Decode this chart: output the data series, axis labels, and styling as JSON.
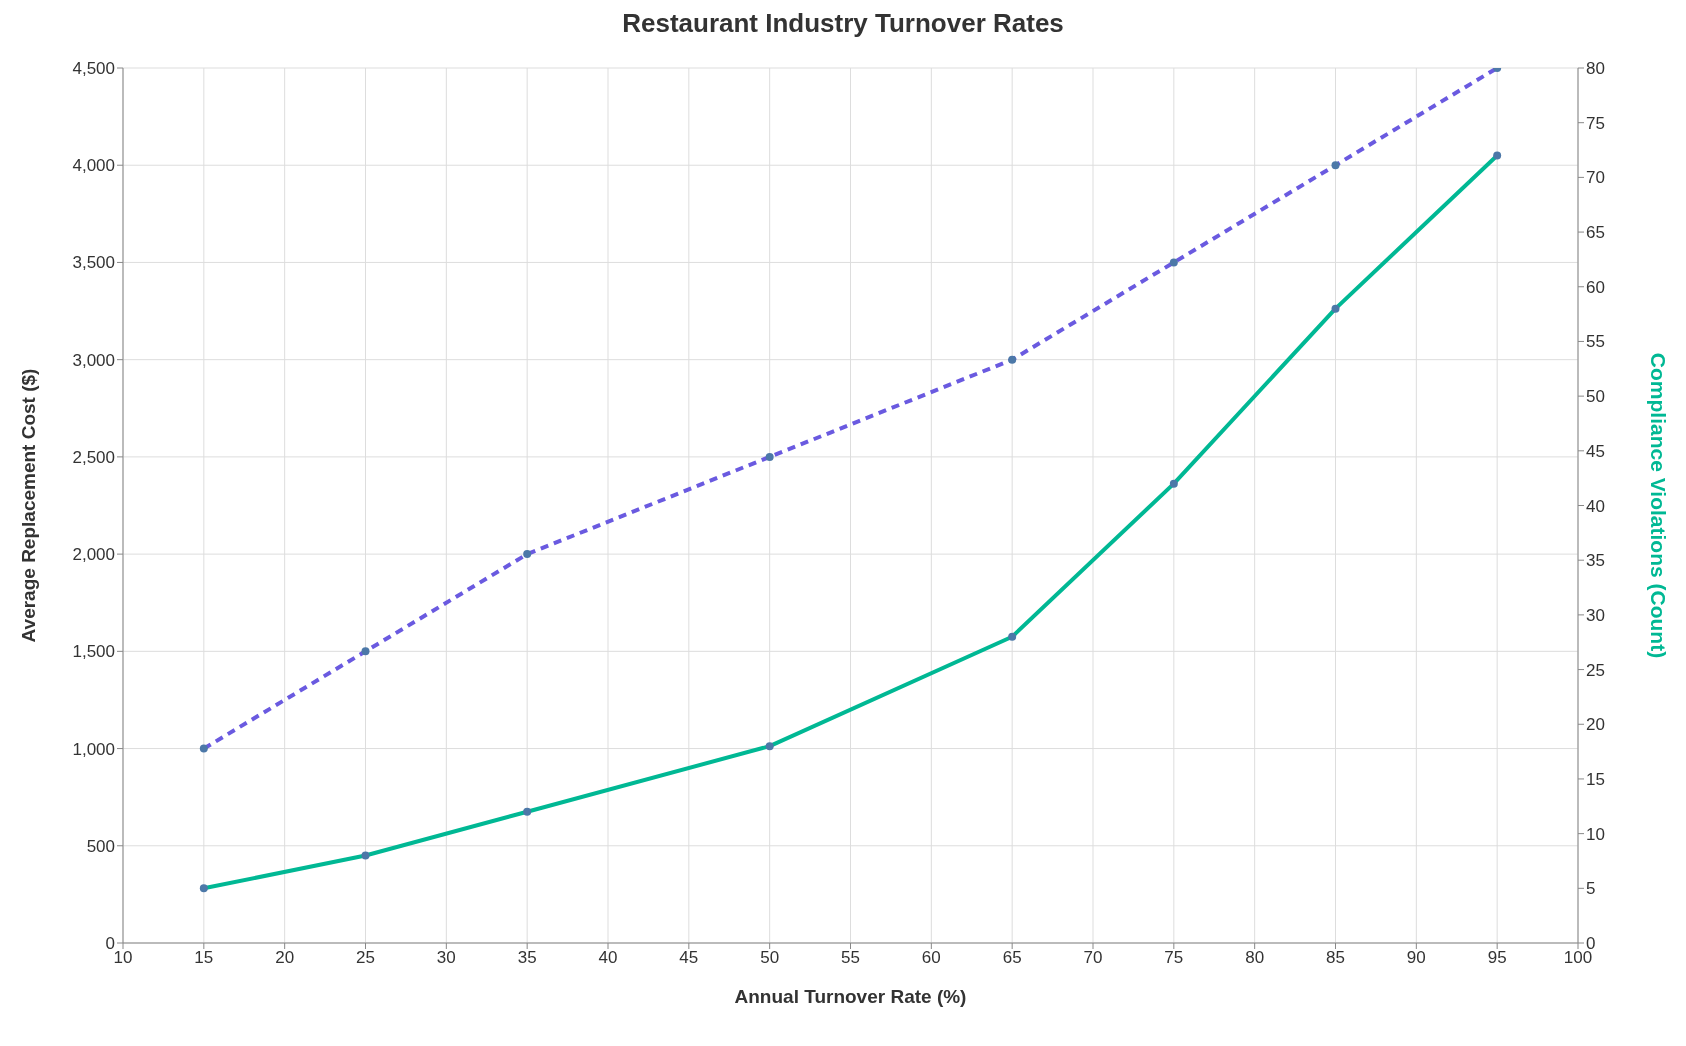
{
  "chart_data": {
    "type": "line",
    "title": "Restaurant Industry Turnover Rates",
    "xlabel": "Annual Turnover Rate (%)",
    "ylabel": "Average Replacement Cost ($)",
    "y2label": "Compliance Violations (Count)",
    "x": [
      15,
      25,
      35,
      50,
      65,
      75,
      85,
      95
    ],
    "series": [
      {
        "color": "#6a5ae0",
        "line_style": "dashed",
        "values": [
          1000,
          1500,
          2000,
          2500,
          3000,
          3500,
          4000,
          4500
        ]
      },
      {
        "color": "#00b894",
        "line_style": "solid",
        "axis": "y2",
        "values": [
          5,
          8,
          12,
          18,
          28,
          42,
          58,
          72
        ]
      }
    ],
    "xlim": [
      10,
      100
    ],
    "xticks": [
      10,
      15,
      20,
      25,
      30,
      35,
      40,
      45,
      50,
      55,
      60,
      65,
      70,
      75,
      80,
      85,
      90,
      95,
      100
    ],
    "ylim": [
      0,
      4500
    ],
    "yticks": [
      0,
      500,
      {
        "value": 1000,
        "label": "1,000"
      },
      {
        "value": 1500,
        "label": "1,500"
      },
      {
        "value": 2000,
        "label": "2,000"
      },
      {
        "value": 2500,
        "label": "2,500"
      },
      {
        "value": 3000,
        "label": "3,000"
      },
      {
        "value": 3500,
        "label": "3,500"
      },
      {
        "value": 4000,
        "label": "4,000"
      },
      {
        "value": 4500,
        "label": "4,500"
      }
    ],
    "y2lim": [
      0,
      80
    ],
    "y2ticks": [
      0,
      5,
      10,
      15,
      20,
      25,
      30,
      35,
      40,
      45,
      50,
      55,
      60,
      65,
      70,
      75,
      80
    ],
    "grid": true,
    "marker": "circle"
  }
}
